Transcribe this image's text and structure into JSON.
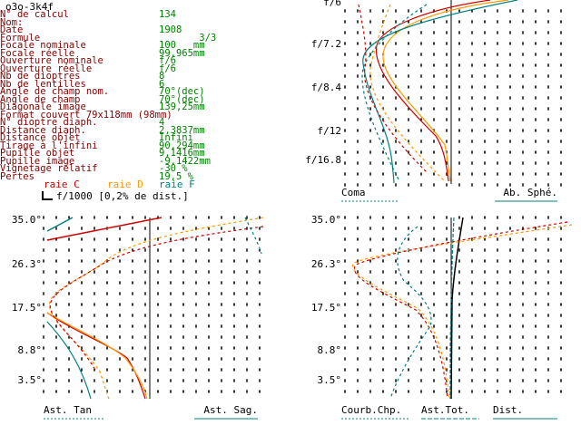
{
  "title": "o3o-3k4f",
  "info_rows": [
    {
      "label": "N° de calcul",
      "value": "134"
    },
    {
      "label": "Nom:",
      "value": ""
    },
    {
      "label": "Date",
      "value": "1908"
    },
    {
      "label": "Formule",
      "value": "       3/3"
    },
    {
      "label": "Focale nominale",
      "value": "100   mm"
    },
    {
      "label": "Focale réelle",
      "value": "99,965mm"
    },
    {
      "label": "Ouverture nominale",
      "value": "f/6"
    },
    {
      "label": "Ouverture réelle",
      "value": "f/6"
    },
    {
      "label": "Nb de dioptres",
      "value": "8"
    },
    {
      "label": "Nb de lentilles",
      "value": "6"
    },
    {
      "label": "Angle de champ nom.",
      "value": "70°(dec)"
    },
    {
      "label": "Angle de champ",
      "value": "70°(dec)"
    },
    {
      "label": "Diagonale image",
      "value": "139,25mm"
    },
    {
      "label": "Format couvert 79x118mm (98mm)",
      "value": ""
    },
    {
      "label": "N° dioptre diaph.",
      "value": "4"
    },
    {
      "label": "Distance diaph.",
      "value": "2,3837mm"
    },
    {
      "label": "Distance objet",
      "value": "Infini"
    },
    {
      "label": "Tirage à l'infini",
      "value": "90,294mm"
    },
    {
      "label": "Pupille objet",
      "value": "9,1416mm"
    },
    {
      "label": "Pupille image",
      "value": "-9,1422mm"
    },
    {
      "label": "Vignetage relatif",
      "value": "-30 %"
    },
    {
      "label": "Pertes",
      "value": "19,5 %"
    }
  ],
  "legend": {
    "raie_c": "raie C",
    "raie_d": "raie D",
    "raie_f": "raie F",
    "reference": "f/1000 [0,2% de dist.]"
  },
  "colors": {
    "label": "#800000",
    "value": "#008000",
    "raie_c": "#cc0000",
    "raie_d": "#ff9900",
    "raie_f": "#008080",
    "grid": "#000000",
    "blue_underline": "#008080"
  },
  "chart_data": [
    {
      "type": "line",
      "name": "coma-spherical",
      "y_ticks": [
        "f/6",
        "f/7.2",
        "f/8.4",
        "f/12",
        "f/16.8"
      ],
      "foot_labels": [
        "Coma",
        "Ab. Sphé."
      ],
      "series": [
        {
          "name": "raie C",
          "color": "#cc0000",
          "style": "solid"
        },
        {
          "name": "raie D",
          "color": "#ff9900",
          "style": "solid"
        },
        {
          "name": "raie F",
          "color": "#008080",
          "style": "solid"
        },
        {
          "name": "coma C",
          "color": "#cc0000",
          "style": "dashed"
        },
        {
          "name": "coma D",
          "color": "#ff9900",
          "style": "dashed"
        },
        {
          "name": "coma F",
          "color": "#008080",
          "style": "dashed"
        }
      ]
    },
    {
      "type": "line",
      "name": "astigmatism",
      "y_ticks": [
        "35.0°",
        "26.3°",
        "17.5°",
        "8.8°",
        "3.5°"
      ],
      "foot_labels": [
        "Ast. Tan",
        "Ast. Sag."
      ]
    },
    {
      "type": "line",
      "name": "field-curvature-distortion",
      "y_ticks": [
        "35.0°",
        "26.3°",
        "17.5°",
        "8.8°",
        "3.5°"
      ],
      "foot_labels": [
        "Courb.Chp.",
        "Ast.Tot.",
        "Dist."
      ]
    }
  ]
}
